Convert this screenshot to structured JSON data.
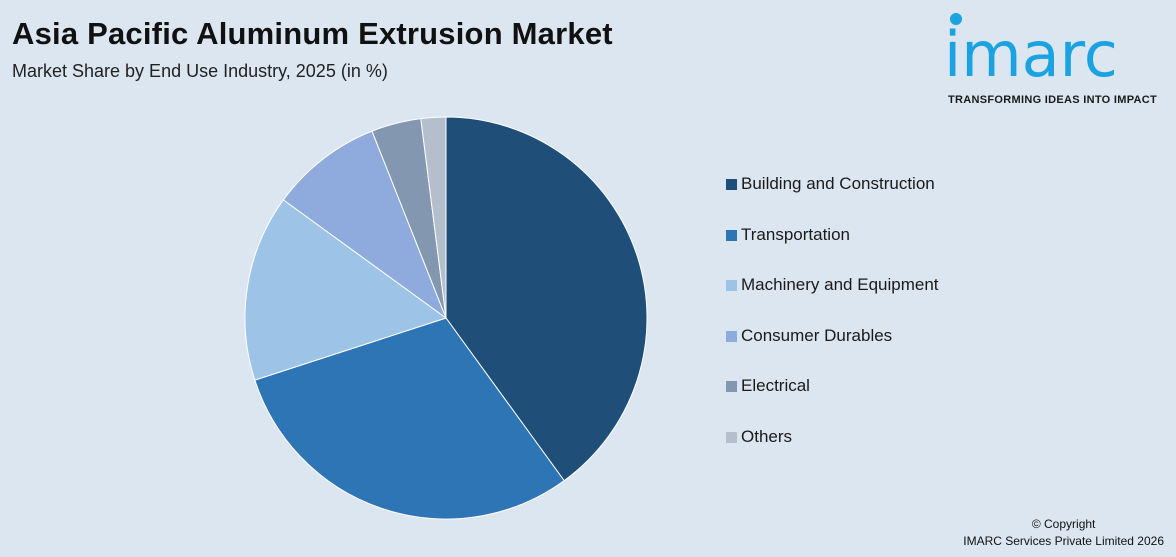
{
  "header": {
    "title": "Asia Pacific Aluminum Extrusion Market",
    "subtitle": "Market Share by End Use Industry, 2025 (in %)"
  },
  "logo": {
    "wordmark": "imarc",
    "tagline": "TRANSFORMING IDEAS INTO IMPACT",
    "color": "#1aa3e0"
  },
  "chart_data": {
    "type": "pie",
    "title": "Asia Pacific Aluminum Extrusion Market",
    "subtitle": "Market Share by End Use Industry, 2025 (in %)",
    "categories": [
      "Building and Construction",
      "Transportation",
      "Machinery and Equipment",
      "Consumer Durables",
      "Electrical",
      "Others"
    ],
    "values": [
      40,
      30,
      15,
      9,
      4,
      2
    ],
    "colors": [
      "#1f4e79",
      "#2e75b6",
      "#9dc3e6",
      "#8faadc",
      "#8497b0",
      "#b4bfcd"
    ],
    "start_angle": "12 o'clock",
    "direction": "clockwise",
    "legend_position": "right"
  },
  "footer": {
    "copyright_line1": "© Copyright",
    "copyright_line2": "IMARC Services Private Limited 2026"
  }
}
